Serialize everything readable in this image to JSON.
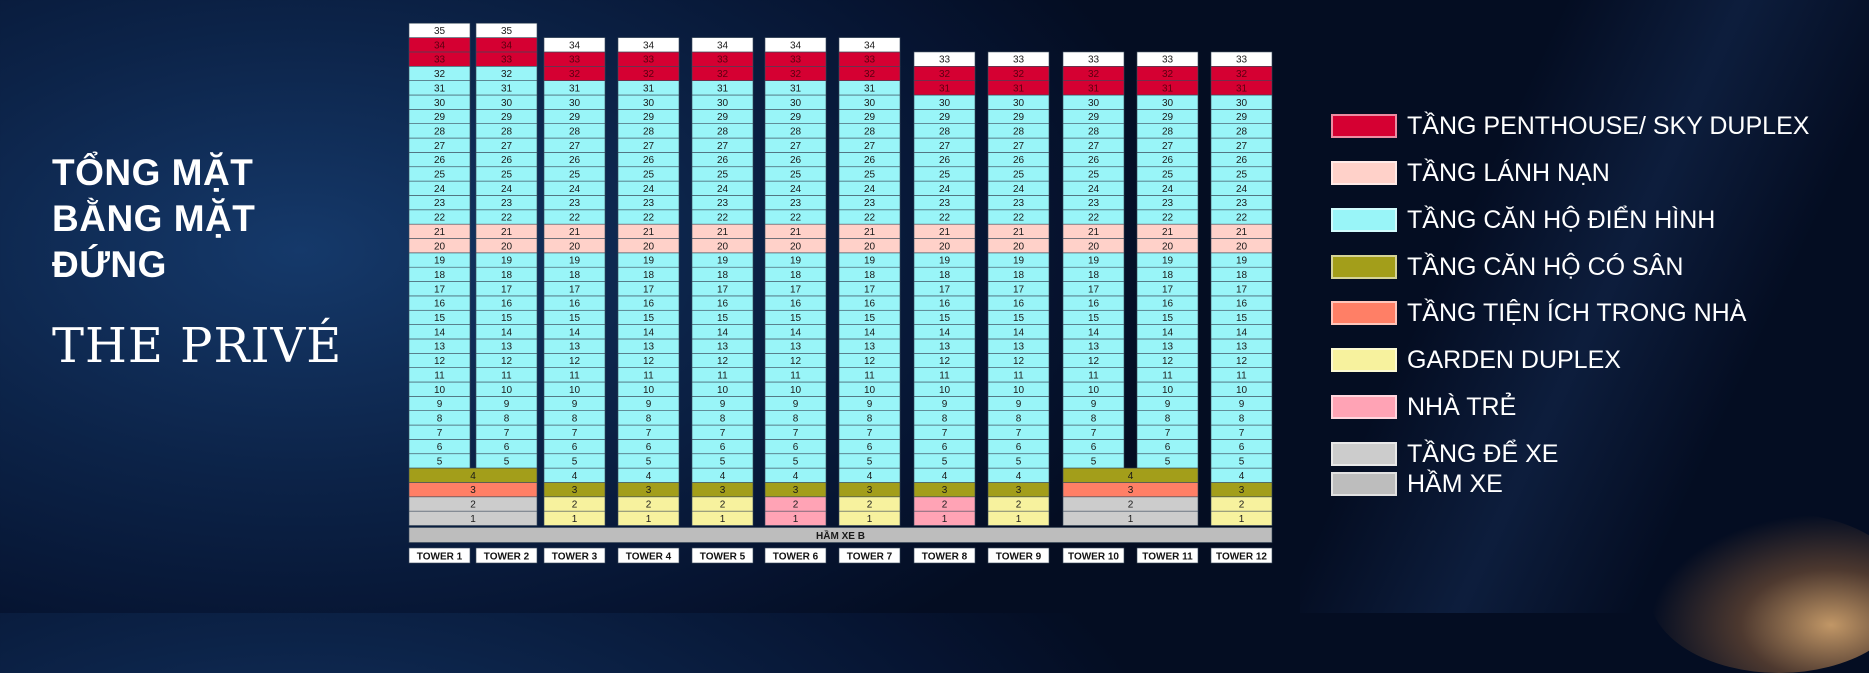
{
  "heading": {
    "lines": [
      "TỔNG MẶT",
      "BẰNG MẶT",
      "ĐỨNG"
    ],
    "brand_prefix": "THE ",
    "brand_main": "PRIVÉ"
  },
  "colors": {
    "penthouse": "#D50032",
    "refuge": "#FFD1C9",
    "typical": "#99F5F8",
    "yard": "#A39E1A",
    "amenity": "#FF7F66",
    "garden": "#F7F29E",
    "kindergarten": "#FFA3B5",
    "parking": "#CCCCCC",
    "basement": "#BDBDBD",
    "top": "#FFFFFF"
  },
  "legend": [
    {
      "key": "penthouse",
      "label": "TẦNG PENTHOUSE/ SKY DUPLEX"
    },
    {
      "key": "refuge",
      "label": "TẦNG LÁNH NẠN"
    },
    {
      "key": "typical",
      "label": "TẦNG CĂN HỘ ĐIỂN HÌNH"
    },
    {
      "key": "yard",
      "label": "TẦNG CĂN HỘ CÓ SÂN"
    },
    {
      "key": "amenity",
      "label": "TẦNG TIỆN ÍCH TRONG NHÀ"
    },
    {
      "key": "garden",
      "label": "GARDEN DUPLEX"
    },
    {
      "key": "kindergarten",
      "label": "NHÀ TRẺ"
    },
    {
      "key": "parking",
      "label": "TẦNG ĐỂ XE"
    },
    {
      "key": "basement",
      "label": "HẦM XE"
    }
  ],
  "basement_label": "HẦM XE B",
  "towers": [
    {
      "name": "TOWER 1",
      "top": 35,
      "penthouse": [
        33,
        34
      ],
      "low": {
        "4": "yard",
        "3": "amenity",
        "2": "parking",
        "1": "parking"
      }
    },
    {
      "name": "TOWER 2",
      "top": 35,
      "penthouse": [
        33,
        34
      ],
      "low": {
        "4": "yard",
        "3": "amenity",
        "2": "parking",
        "1": "parking"
      }
    },
    {
      "name": "TOWER 3",
      "top": 34,
      "penthouse": [
        32,
        33
      ],
      "low": {
        "3": "yard",
        "2": "garden",
        "1": "garden"
      }
    },
    {
      "name": "TOWER 4",
      "top": 34,
      "penthouse": [
        32,
        33
      ],
      "low": {
        "3": "yard",
        "2": "garden",
        "1": "garden"
      }
    },
    {
      "name": "TOWER 5",
      "top": 34,
      "penthouse": [
        32,
        33
      ],
      "low": {
        "3": "yard",
        "2": "garden",
        "1": "garden"
      }
    },
    {
      "name": "TOWER 6",
      "top": 34,
      "penthouse": [
        32,
        33
      ],
      "low": {
        "3": "yard",
        "2": "kindergarten",
        "1": "kindergarten"
      }
    },
    {
      "name": "TOWER 7",
      "top": 34,
      "penthouse": [
        32,
        33
      ],
      "low": {
        "3": "yard",
        "2": "garden",
        "1": "garden"
      }
    },
    {
      "name": "TOWER 8",
      "top": 33,
      "penthouse": [
        31,
        32
      ],
      "low": {
        "3": "yard",
        "2": "kindergarten",
        "1": "kindergarten"
      }
    },
    {
      "name": "TOWER 9",
      "top": 33,
      "penthouse": [
        31,
        32
      ],
      "low": {
        "3": "yard",
        "2": "garden",
        "1": "garden"
      }
    },
    {
      "name": "TOWER 10",
      "top": 33,
      "penthouse": [
        31,
        32
      ],
      "low": {
        "4": "yard",
        "3": "amenity",
        "2": "parking",
        "1": "parking"
      }
    },
    {
      "name": "TOWER 11",
      "top": 33,
      "penthouse": [
        31,
        32
      ],
      "low": {
        "4": "yard",
        "3": "amenity",
        "2": "parking",
        "1": "parking"
      }
    },
    {
      "name": "TOWER 12",
      "top": 33,
      "penthouse": [
        31,
        32
      ],
      "low": {
        "3": "yard",
        "2": "garden",
        "1": "garden"
      }
    }
  ],
  "refuge_floors": [
    20,
    21
  ],
  "merged_podiums": [
    {
      "towers": [
        0,
        1
      ],
      "floors": [
        1,
        2,
        3,
        4
      ]
    },
    {
      "towers": [
        9,
        10
      ],
      "floors": [
        1,
        2,
        3,
        4
      ]
    }
  ]
}
